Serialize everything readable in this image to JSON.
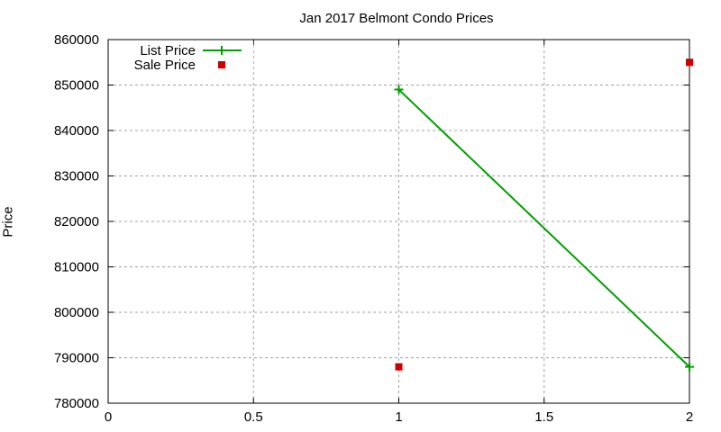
{
  "chart_data": {
    "type": "line",
    "title": "Jan 2017 Belmont Condo Prices",
    "xlabel": "",
    "ylabel": "Price",
    "xlim": [
      0,
      2
    ],
    "ylim": [
      780000,
      860000
    ],
    "xticks": [
      "0",
      "0.5",
      "1",
      "1.5",
      "2"
    ],
    "yticks": [
      "780000",
      "790000",
      "800000",
      "810000",
      "820000",
      "830000",
      "840000",
      "850000",
      "860000"
    ],
    "grid": true,
    "legend_position": "top-left",
    "series": [
      {
        "name": "List Price",
        "style": "line+points",
        "color": "#00a000",
        "x": [
          1,
          2
        ],
        "values": [
          849000,
          788000
        ]
      },
      {
        "name": "Sale Price",
        "style": "points",
        "color": "#cc0000",
        "x": [
          1,
          2
        ],
        "values": [
          788000,
          855000
        ]
      }
    ]
  }
}
